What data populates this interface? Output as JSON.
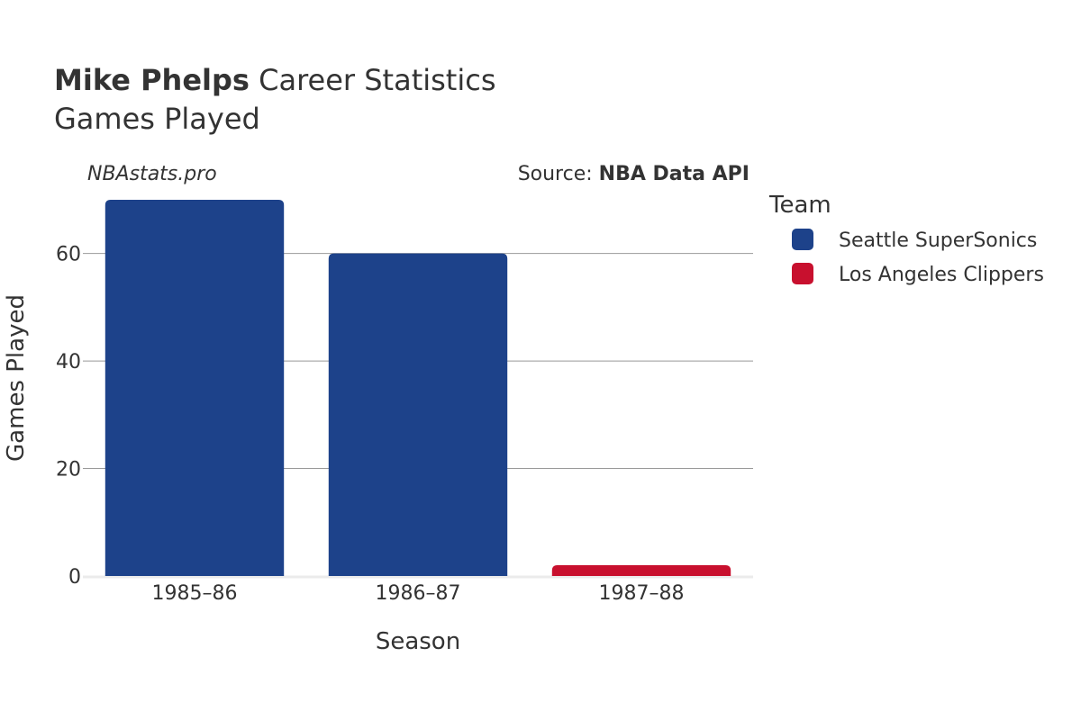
{
  "title": {
    "name": "Mike Phelps",
    "rest": " Career Statistics",
    "subtitle": "Games Played"
  },
  "watermark": "NBAstats.pro",
  "source": {
    "prefix": "Source: ",
    "name": "NBA Data API"
  },
  "chart_data": {
    "type": "bar",
    "categories": [
      "1985–86",
      "1986–87",
      "1987–88"
    ],
    "values": [
      70,
      60,
      2
    ],
    "series_for_bar": [
      "Seattle SuperSonics",
      "Seattle SuperSonics",
      "Los Angeles Clippers"
    ],
    "xlabel": "Season",
    "ylabel": "Games Played",
    "ylim": [
      0,
      72
    ],
    "yticks": [
      0,
      20,
      40,
      60
    ],
    "grid": true,
    "legend": {
      "title": "Team",
      "placement": "right",
      "entries": [
        {
          "name": "Seattle SuperSonics",
          "color": "#1D428A"
        },
        {
          "name": "Los Angeles Clippers",
          "color": "#C8102E"
        }
      ]
    }
  }
}
